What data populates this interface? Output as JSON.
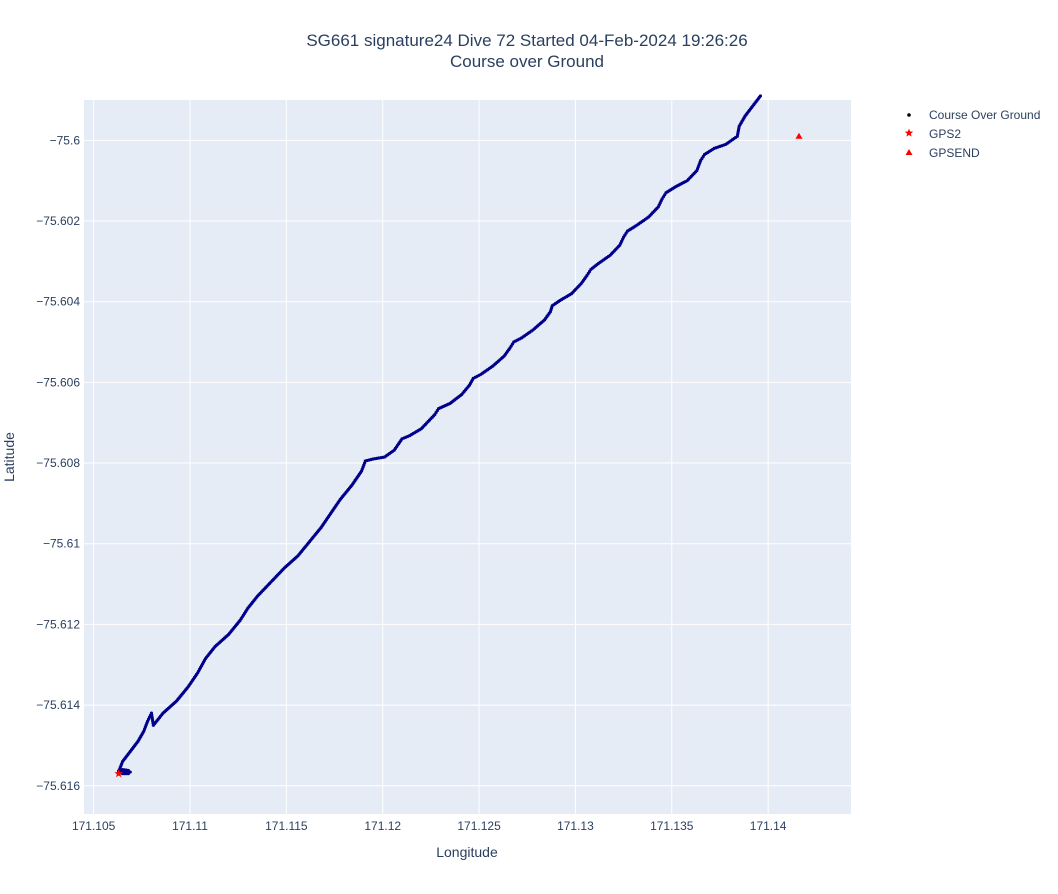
{
  "chart_data": {
    "type": "scatter",
    "title_line1": "SG661 signature24 Dive 72 Started 04-Feb-2024 19:26:26",
    "title_line2": "Course over Ground",
    "xlabel": "Longitude",
    "ylabel": "Latitude",
    "xlim": [
      171.1045,
      171.1443
    ],
    "ylim": [
      -75.6167,
      -75.599
    ],
    "x_ticks": [
      171.105,
      171.11,
      171.115,
      171.12,
      171.125,
      171.13,
      171.135,
      171.14
    ],
    "x_tick_labels": [
      "171.105",
      "171.11",
      "171.115",
      "171.12",
      "171.125",
      "171.13",
      "171.135",
      "171.14"
    ],
    "y_ticks": [
      -75.6,
      -75.602,
      -75.604,
      -75.606,
      -75.608,
      -75.61,
      -75.612,
      -75.614,
      -75.616
    ],
    "y_tick_labels": [
      "−75.6",
      "−75.602",
      "−75.604",
      "−75.606",
      "−75.608",
      "−75.61",
      "−75.612",
      "−75.614",
      "−75.616"
    ],
    "grid": true,
    "legend_position": "right",
    "series": [
      {
        "name": "Course Over Ground",
        "color": "#00008b",
        "marker": "dot",
        "x": [
          171.1067,
          171.1064,
          171.1063,
          171.1065,
          171.1068,
          171.1069,
          171.1068,
          171.1065,
          171.1063,
          171.1065,
          171.1069,
          171.1073,
          171.1076,
          171.1078,
          171.108,
          171.1081,
          171.1086,
          171.1093,
          171.1099,
          171.1104,
          171.1108,
          171.1113,
          171.112,
          171.1126,
          171.113,
          171.1135,
          171.1142,
          171.1149,
          171.1156,
          171.1162,
          171.1168,
          171.1173,
          171.1178,
          171.1184,
          171.1189,
          171.1191,
          171.1195,
          171.1201,
          171.1206,
          171.121,
          171.1214,
          171.122,
          171.1225,
          171.1227,
          171.1229,
          171.1235,
          171.1241,
          171.1245,
          171.1247,
          171.1251,
          171.1257,
          171.1263,
          171.1266,
          171.1268,
          171.1272,
          171.1278,
          171.1284,
          171.1287,
          171.1288,
          171.1292,
          171.1298,
          171.1303,
          171.1306,
          171.1308,
          171.1312,
          171.1318,
          171.1323,
          171.1325,
          171.1327,
          171.1332,
          171.1338,
          171.1343,
          171.1345,
          171.1347,
          171.1352,
          171.1358,
          171.1363,
          171.1365,
          171.1367,
          171.1372,
          171.1378,
          171.1384,
          171.1385,
          171.1388,
          171.1392,
          171.1396
        ],
        "y": [
          -75.61568,
          -75.61566,
          -75.61563,
          -75.6156,
          -75.61562,
          -75.61566,
          -75.6157,
          -75.6157,
          -75.61565,
          -75.6154,
          -75.61515,
          -75.6149,
          -75.61465,
          -75.6144,
          -75.6142,
          -75.6145,
          -75.6142,
          -75.6139,
          -75.61355,
          -75.6132,
          -75.61285,
          -75.61255,
          -75.61225,
          -75.6119,
          -75.6116,
          -75.6113,
          -75.61095,
          -75.6106,
          -75.6103,
          -75.60995,
          -75.6096,
          -75.60925,
          -75.6089,
          -75.60855,
          -75.6082,
          -75.60795,
          -75.6079,
          -75.60785,
          -75.60768,
          -75.6074,
          -75.60732,
          -75.60715,
          -75.6069,
          -75.6068,
          -75.60665,
          -75.60652,
          -75.6063,
          -75.60607,
          -75.6059,
          -75.6058,
          -75.6056,
          -75.60535,
          -75.60515,
          -75.605,
          -75.6049,
          -75.6047,
          -75.60445,
          -75.60425,
          -75.6041,
          -75.60397,
          -75.6038,
          -75.60355,
          -75.60335,
          -75.6032,
          -75.60305,
          -75.60285,
          -75.6026,
          -75.6024,
          -75.60225,
          -75.6021,
          -75.6019,
          -75.60165,
          -75.60145,
          -75.6013,
          -75.60115,
          -75.601,
          -75.60075,
          -75.6005,
          -75.60035,
          -75.6002,
          -75.6001,
          -75.5999,
          -75.59965,
          -75.5994,
          -75.59915,
          -75.5989
        ]
      },
      {
        "name": "GPS2",
        "color": "#ff0000",
        "marker": "star",
        "x": [
          171.1063
        ],
        "y": [
          -75.6157
        ]
      },
      {
        "name": "GPSEND",
        "color": "#ff0000",
        "marker": "triangle-up",
        "x": [
          171.1416
        ],
        "y": [
          -75.5999
        ]
      }
    ]
  }
}
